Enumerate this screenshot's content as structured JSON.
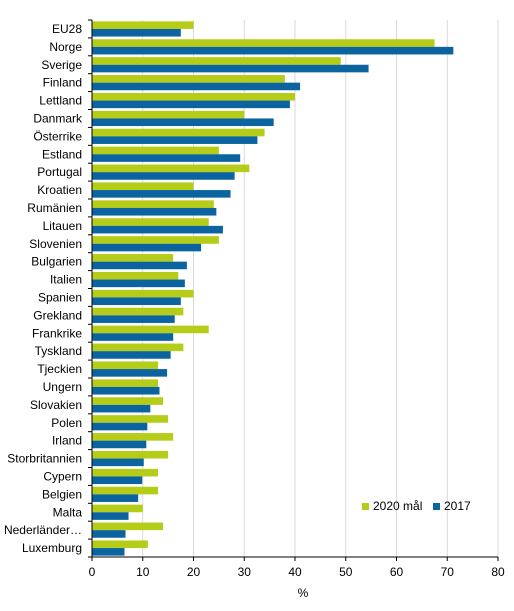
{
  "chart_data": {
    "type": "bar",
    "orientation": "horizontal",
    "categories": [
      "EU28",
      "Norge",
      "Sverige",
      "Finland",
      "Lettland",
      "Danmark",
      "Österrike",
      "Estland",
      "Portugal",
      "Kroatien",
      "Rumänien",
      "Litauen",
      "Slovenien",
      "Bulgarien",
      "Italien",
      "Spanien",
      "Grekland",
      "Frankrike",
      "Tyskland",
      "Tjeckien",
      "Ungern",
      "Slovakien",
      "Polen",
      "Irland",
      "Storbritannien",
      "Cypern",
      "Belgien",
      "Malta",
      "Nederländer…",
      "Luxemburg"
    ],
    "series": [
      {
        "name": "2020 mål",
        "color": "#b5cc18",
        "values": [
          20,
          67.5,
          49,
          38,
          40,
          30,
          34,
          25,
          31,
          20,
          24,
          23,
          25,
          16,
          17,
          20,
          18,
          23,
          18,
          13,
          13,
          14,
          15,
          16,
          15,
          13,
          13,
          10,
          14,
          11
        ]
      },
      {
        "name": "2017",
        "color": "#0b64a0",
        "values": [
          17.5,
          71.2,
          54.5,
          41,
          39,
          35.8,
          32.6,
          29.2,
          28.1,
          27.3,
          24.5,
          25.8,
          21.5,
          18.7,
          18.3,
          17.5,
          16.3,
          16,
          15.5,
          14.8,
          13.3,
          11.5,
          10.9,
          10.7,
          10.2,
          9.9,
          9.1,
          7.2,
          6.6,
          6.4
        ]
      }
    ],
    "xlabel": "%",
    "xlim": [
      0,
      80
    ],
    "xticks": [
      "0",
      "10",
      "20",
      "30",
      "40",
      "50",
      "60",
      "70",
      "80"
    ],
    "grid": true,
    "legend": "bottom-right"
  }
}
